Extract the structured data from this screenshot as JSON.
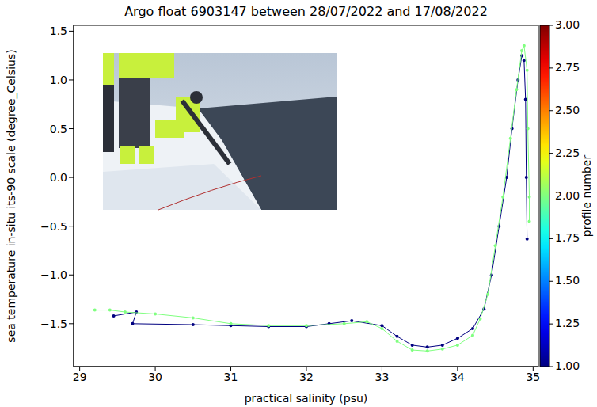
{
  "chart_data": {
    "type": "scatter",
    "title": "Argo float 6903147 between 28/07/2022 and 17/08/2022",
    "x_label": "practical salinity (psu)",
    "y_label": "sea temperature in-situ its-90 scale (degree_Celsius)",
    "xlim": [
      28.92,
      35.07
    ],
    "xticks": [
      29,
      30,
      31,
      32,
      33,
      34,
      35
    ],
    "ylim": [
      -1.94,
      1.56
    ],
    "yticks": [
      {
        "value": -1.5,
        "label": "−1.5"
      },
      {
        "value": -1.0,
        "label": "−1.0"
      },
      {
        "value": -0.5,
        "label": "−0.5"
      },
      {
        "value": 0,
        "label": "0.0"
      },
      {
        "value": 0.5,
        "label": "0.5"
      },
      {
        "value": 1.0,
        "label": "1.0"
      },
      {
        "value": 1.5,
        "label": "1.5"
      }
    ],
    "grid": false,
    "marker": "circle",
    "line_style": "solid",
    "colorbar": {
      "label": "profile number",
      "range": [
        1,
        3
      ],
      "ticks": [
        {
          "value": 1,
          "label": "1.00"
        },
        {
          "value": 1.25,
          "label": "1.25"
        },
        {
          "value": 1.5,
          "label": "1.50"
        },
        {
          "value": 1.75,
          "label": "1.75"
        },
        {
          "value": 2,
          "label": "2.00"
        },
        {
          "value": 2.25,
          "label": "2.25"
        },
        {
          "value": 2.5,
          "label": "2.50"
        },
        {
          "value": 2.75,
          "label": "2.75"
        },
        {
          "value": 3,
          "label": "3.00"
        }
      ]
    },
    "series": [
      {
        "profile": 1,
        "x": [
          29.45,
          29.75,
          29.7,
          30.5,
          31.0,
          31.5,
          32.0,
          32.3,
          32.6,
          33.0,
          33.2,
          33.4,
          33.6,
          33.8,
          34.0,
          34.2,
          34.35,
          34.45,
          34.55,
          34.65,
          34.72,
          34.8,
          34.85,
          34.88,
          34.9,
          34.91,
          34.92
        ],
        "values": [
          -1.42,
          -1.38,
          -1.5,
          -1.51,
          -1.52,
          -1.53,
          -1.53,
          -1.5,
          -1.47,
          -1.52,
          -1.63,
          -1.72,
          -1.74,
          -1.72,
          -1.65,
          -1.55,
          -1.35,
          -1.0,
          -0.5,
          0.0,
          0.5,
          1.0,
          1.25,
          1.2,
          0.8,
          0.0,
          -0.63
        ]
      },
      {
        "profile": 2,
        "x": [
          29.2,
          29.4,
          29.6,
          30.0,
          30.5,
          31.0,
          31.5,
          32.0,
          32.5,
          32.8,
          33.0,
          33.2,
          33.4,
          33.6,
          33.8,
          34.0,
          34.2,
          34.3,
          34.4,
          34.5,
          34.6,
          34.7,
          34.78,
          34.85,
          34.88,
          34.92,
          34.93,
          34.95,
          34.95
        ],
        "values": [
          -1.36,
          -1.36,
          -1.38,
          -1.4,
          -1.44,
          -1.5,
          -1.52,
          -1.52,
          -1.5,
          -1.48,
          -1.55,
          -1.68,
          -1.77,
          -1.78,
          -1.76,
          -1.72,
          -1.62,
          -1.45,
          -1.2,
          -0.7,
          -0.2,
          0.4,
          0.9,
          1.3,
          1.35,
          1.1,
          0.5,
          -0.2,
          -0.45
        ]
      }
    ]
  }
}
